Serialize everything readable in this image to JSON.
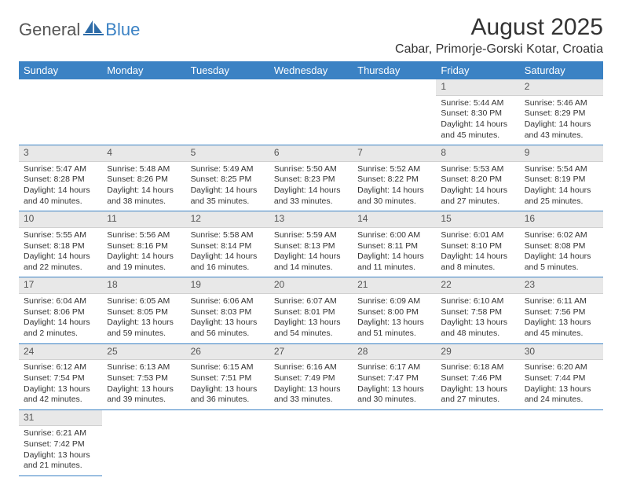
{
  "brand": {
    "part1": "General",
    "part2": "Blue"
  },
  "title": "August 2025",
  "location": "Cabar, Primorje-Gorski Kotar, Croatia",
  "colors": {
    "header_bg": "#3b82c4",
    "header_fg": "#ffffff",
    "daynum_bg": "#e8e8e8",
    "row_border": "#3b82c4",
    "text": "#333333"
  },
  "weekdays": [
    "Sunday",
    "Monday",
    "Tuesday",
    "Wednesday",
    "Thursday",
    "Friday",
    "Saturday"
  ],
  "weeks": [
    [
      null,
      null,
      null,
      null,
      null,
      {
        "n": "1",
        "sr": "5:44 AM",
        "ss": "8:30 PM",
        "dl": "14 hours and 45 minutes."
      },
      {
        "n": "2",
        "sr": "5:46 AM",
        "ss": "8:29 PM",
        "dl": "14 hours and 43 minutes."
      }
    ],
    [
      {
        "n": "3",
        "sr": "5:47 AM",
        "ss": "8:28 PM",
        "dl": "14 hours and 40 minutes."
      },
      {
        "n": "4",
        "sr": "5:48 AM",
        "ss": "8:26 PM",
        "dl": "14 hours and 38 minutes."
      },
      {
        "n": "5",
        "sr": "5:49 AM",
        "ss": "8:25 PM",
        "dl": "14 hours and 35 minutes."
      },
      {
        "n": "6",
        "sr": "5:50 AM",
        "ss": "8:23 PM",
        "dl": "14 hours and 33 minutes."
      },
      {
        "n": "7",
        "sr": "5:52 AM",
        "ss": "8:22 PM",
        "dl": "14 hours and 30 minutes."
      },
      {
        "n": "8",
        "sr": "5:53 AM",
        "ss": "8:20 PM",
        "dl": "14 hours and 27 minutes."
      },
      {
        "n": "9",
        "sr": "5:54 AM",
        "ss": "8:19 PM",
        "dl": "14 hours and 25 minutes."
      }
    ],
    [
      {
        "n": "10",
        "sr": "5:55 AM",
        "ss": "8:18 PM",
        "dl": "14 hours and 22 minutes."
      },
      {
        "n": "11",
        "sr": "5:56 AM",
        "ss": "8:16 PM",
        "dl": "14 hours and 19 minutes."
      },
      {
        "n": "12",
        "sr": "5:58 AM",
        "ss": "8:14 PM",
        "dl": "14 hours and 16 minutes."
      },
      {
        "n": "13",
        "sr": "5:59 AM",
        "ss": "8:13 PM",
        "dl": "14 hours and 14 minutes."
      },
      {
        "n": "14",
        "sr": "6:00 AM",
        "ss": "8:11 PM",
        "dl": "14 hours and 11 minutes."
      },
      {
        "n": "15",
        "sr": "6:01 AM",
        "ss": "8:10 PM",
        "dl": "14 hours and 8 minutes."
      },
      {
        "n": "16",
        "sr": "6:02 AM",
        "ss": "8:08 PM",
        "dl": "14 hours and 5 minutes."
      }
    ],
    [
      {
        "n": "17",
        "sr": "6:04 AM",
        "ss": "8:06 PM",
        "dl": "14 hours and 2 minutes."
      },
      {
        "n": "18",
        "sr": "6:05 AM",
        "ss": "8:05 PM",
        "dl": "13 hours and 59 minutes."
      },
      {
        "n": "19",
        "sr": "6:06 AM",
        "ss": "8:03 PM",
        "dl": "13 hours and 56 minutes."
      },
      {
        "n": "20",
        "sr": "6:07 AM",
        "ss": "8:01 PM",
        "dl": "13 hours and 54 minutes."
      },
      {
        "n": "21",
        "sr": "6:09 AM",
        "ss": "8:00 PM",
        "dl": "13 hours and 51 minutes."
      },
      {
        "n": "22",
        "sr": "6:10 AM",
        "ss": "7:58 PM",
        "dl": "13 hours and 48 minutes."
      },
      {
        "n": "23",
        "sr": "6:11 AM",
        "ss": "7:56 PM",
        "dl": "13 hours and 45 minutes."
      }
    ],
    [
      {
        "n": "24",
        "sr": "6:12 AM",
        "ss": "7:54 PM",
        "dl": "13 hours and 42 minutes."
      },
      {
        "n": "25",
        "sr": "6:13 AM",
        "ss": "7:53 PM",
        "dl": "13 hours and 39 minutes."
      },
      {
        "n": "26",
        "sr": "6:15 AM",
        "ss": "7:51 PM",
        "dl": "13 hours and 36 minutes."
      },
      {
        "n": "27",
        "sr": "6:16 AM",
        "ss": "7:49 PM",
        "dl": "13 hours and 33 minutes."
      },
      {
        "n": "28",
        "sr": "6:17 AM",
        "ss": "7:47 PM",
        "dl": "13 hours and 30 minutes."
      },
      {
        "n": "29",
        "sr": "6:18 AM",
        "ss": "7:46 PM",
        "dl": "13 hours and 27 minutes."
      },
      {
        "n": "30",
        "sr": "6:20 AM",
        "ss": "7:44 PM",
        "dl": "13 hours and 24 minutes."
      }
    ],
    [
      {
        "n": "31",
        "sr": "6:21 AM",
        "ss": "7:42 PM",
        "dl": "13 hours and 21 minutes."
      },
      null,
      null,
      null,
      null,
      null,
      null
    ]
  ],
  "labels": {
    "sunrise": "Sunrise:",
    "sunset": "Sunset:",
    "daylight": "Daylight:"
  }
}
